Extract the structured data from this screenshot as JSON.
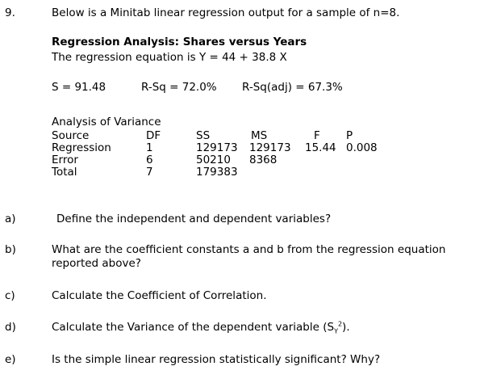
{
  "question": {
    "number": "9.",
    "intro": "Below is a Minitab linear regression output for a sample of n=8."
  },
  "output": {
    "heading": "Regression Analysis: Shares versus Years",
    "equation": "The regression equation is Y = 44 + 38.8 X",
    "s": "S = 91.48",
    "rsq": "R-Sq = 72.0%",
    "rsq_adj": "R-Sq(adj) = 67.3%",
    "anova_title": "Analysis of Variance",
    "columns": [
      "Source",
      "DF",
      "SS",
      "MS",
      "F",
      "P"
    ],
    "rows": [
      [
        "Regression",
        "1",
        "129173",
        "129173",
        "15.44",
        "0.008"
      ],
      [
        "Error",
        "6",
        "50210",
        "8368",
        "",
        ""
      ],
      [
        "Total",
        "7",
        "179383",
        "",
        "",
        ""
      ]
    ]
  },
  "parts": [
    {
      "label": "a)",
      "text": "Define the independent and dependent variables?"
    },
    {
      "label": "b)",
      "text": "What are the coefficient constants a and b from the regression equation",
      "text2": "reported above?"
    },
    {
      "label": "c)",
      "text": "Calculate the Coefficient of Correlation."
    },
    {
      "label": "d)",
      "text": "Calculate the Variance of the dependent variable (S",
      "sub": "Y",
      "sup": "2",
      "tail": ")."
    },
    {
      "label": "e)",
      "text": "Is the simple linear regression statistically significant?  Why?"
    }
  ]
}
